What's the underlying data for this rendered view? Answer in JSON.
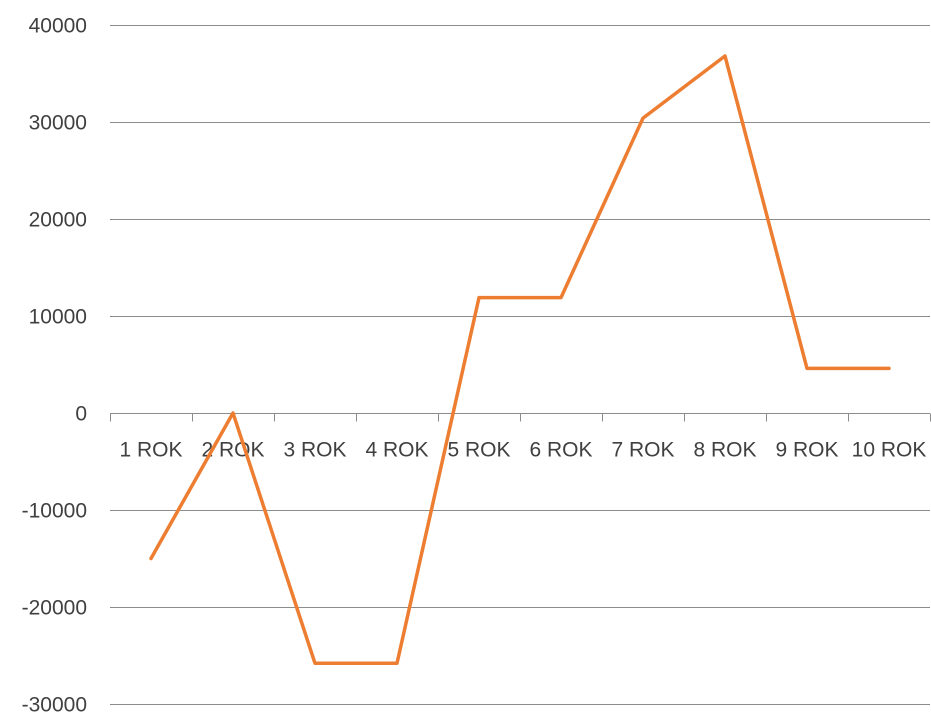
{
  "chart_data": {
    "type": "line",
    "title": "",
    "xlabel": "",
    "ylabel": "",
    "categories": [
      "1 ROK",
      "2 ROK",
      "3 ROK",
      "4 ROK",
      "5 ROK",
      "6 ROK",
      "7 ROK",
      "8 ROK",
      "9 ROK",
      "10 ROK"
    ],
    "series": [
      {
        "values": [
          -15000,
          0,
          -25800,
          -25800,
          11900,
          11900,
          30400,
          36800,
          4600,
          4600
        ],
        "color": "#ed7d31"
      }
    ],
    "ylim": [
      -30000,
      40000
    ],
    "yticks": [
      40000,
      30000,
      20000,
      10000,
      0,
      -10000,
      -20000,
      -30000
    ],
    "grid": "horizontal",
    "legend": "none"
  }
}
